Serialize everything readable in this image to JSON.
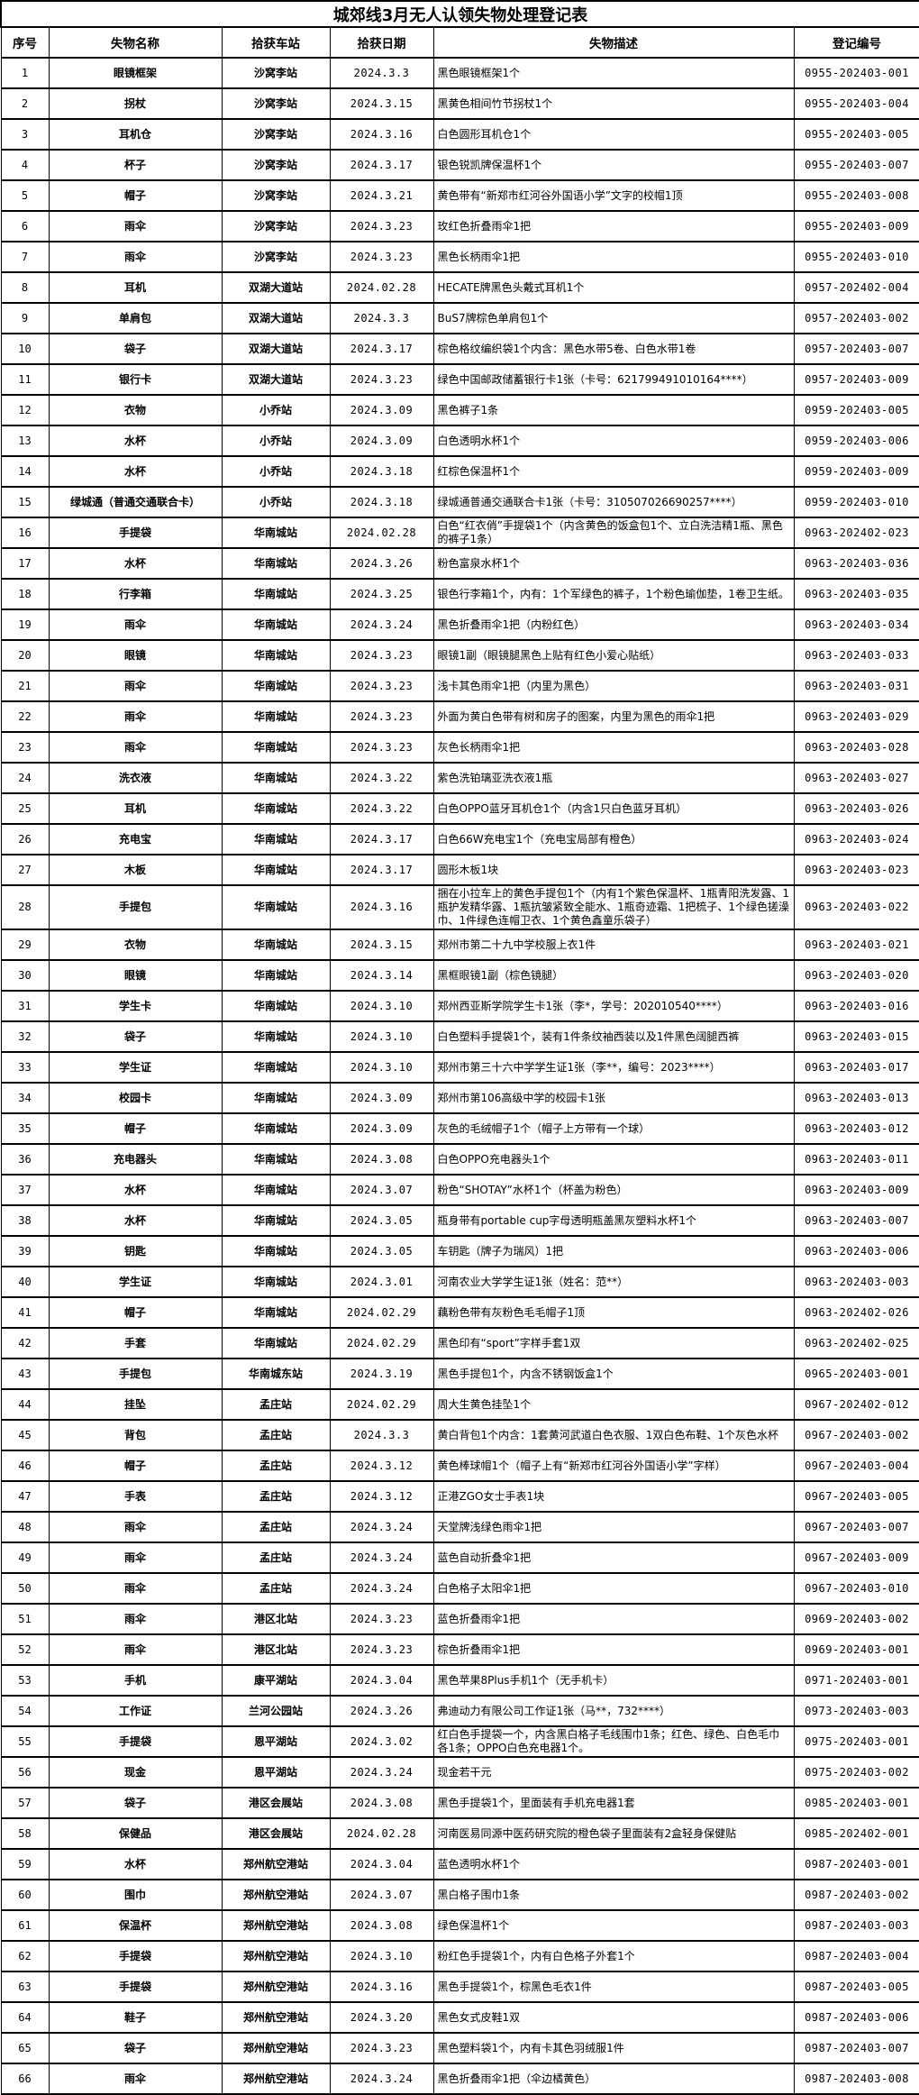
{
  "table": {
    "title": "城郊线3月无人认领失物处理登记表",
    "columns": [
      "序号",
      "失物名称",
      "拾获车站",
      "拾获日期",
      "失物描述",
      "登记编号"
    ],
    "rows": [
      [
        "1",
        "眼镜框架",
        "沙窝李站",
        "2024.3.3",
        "黑色眼镜框架1个",
        "0955-202403-001"
      ],
      [
        "2",
        "拐杖",
        "沙窝李站",
        "2024.3.15",
        "黑黄色相间竹节拐杖1个",
        "0955-202403-004"
      ],
      [
        "3",
        "耳机仓",
        "沙窝李站",
        "2024.3.16",
        "白色圆形耳机仓1个",
        "0955-202403-005"
      ],
      [
        "4",
        "杯子",
        "沙窝李站",
        "2024.3.17",
        "银色锐凯牌保温杯1个",
        "0955-202403-007"
      ],
      [
        "5",
        "帽子",
        "沙窝李站",
        "2024.3.21",
        "黄色带有“新郑市红河谷外国语小学”文字的校帽1顶",
        "0955-202403-008"
      ],
      [
        "6",
        "雨伞",
        "沙窝李站",
        "2024.3.23",
        "玫红色折叠雨伞1把",
        "0955-202403-009"
      ],
      [
        "7",
        "雨伞",
        "沙窝李站",
        "2024.3.23",
        "黑色长柄雨伞1把",
        "0955-202403-010"
      ],
      [
        "8",
        "耳机",
        "双湖大道站",
        "2024.02.28",
        "HECATE牌黑色头戴式耳机1个",
        "0957-202402-004"
      ],
      [
        "9",
        "单肩包",
        "双湖大道站",
        "2024.3.3",
        "BuS7牌棕色单肩包1个",
        "0957-202403-002"
      ],
      [
        "10",
        "袋子",
        "双湖大道站",
        "2024.3.17",
        "棕色格纹编织袋1个内含：黑色水带5卷、白色水带1卷",
        "0957-202403-007"
      ],
      [
        "11",
        "银行卡",
        "双湖大道站",
        "2024.3.23",
        "绿色中国邮政储蓄银行卡1张（卡号：621799491010164****）",
        "0957-202403-009"
      ],
      [
        "12",
        "衣物",
        "小乔站",
        "2024.3.09",
        "黑色裤子1条",
        "0959-202403-005"
      ],
      [
        "13",
        "水杯",
        "小乔站",
        "2024.3.09",
        "白色透明水杯1个",
        "0959-202403-006"
      ],
      [
        "14",
        "水杯",
        "小乔站",
        "2024.3.18",
        "红棕色保温杯1个",
        "0959-202403-009"
      ],
      [
        "15",
        "绿城通（普通交通联合卡）",
        "小乔站",
        "2024.3.18",
        "绿城通普通交通联合卡1张（卡号：310507026690257****）",
        "0959-202403-010"
      ],
      [
        "16",
        "手提袋",
        "华南城站",
        "2024.02.28",
        "白色“红衣俏”手提袋1个（内含黄色的饭盒包1个、立白洗洁精1瓶、黑色的裤子1条）",
        "0963-202402-023"
      ],
      [
        "17",
        "水杯",
        "华南城站",
        "2024.3.26",
        "粉色富泉水杯1个",
        "0963-202403-036"
      ],
      [
        "18",
        "行李箱",
        "华南城站",
        "2024.3.25",
        "银色行李箱1个，内有：1个军绿色的裤子，1个粉色瑜伽垫，1卷卫生纸。",
        "0963-202403-035"
      ],
      [
        "19",
        "雨伞",
        "华南城站",
        "2024.3.24",
        "黑色折叠雨伞1把（内粉红色）",
        "0963-202403-034"
      ],
      [
        "20",
        "眼镜",
        "华南城站",
        "2024.3.23",
        "眼镜1副（眼镜腿黑色上贴有红色小爱心贴纸）",
        "0963-202403-033"
      ],
      [
        "21",
        "雨伞",
        "华南城站",
        "2024.3.23",
        "浅卡其色雨伞1把（内里为黑色）",
        "0963-202403-031"
      ],
      [
        "22",
        "雨伞",
        "华南城站",
        "2024.3.23",
        "外面为黄白色带有树和房子的图案，内里为黑色的雨伞1把",
        "0963-202403-029"
      ],
      [
        "23",
        "雨伞",
        "华南城站",
        "2024.3.23",
        "灰色长柄雨伞1把",
        "0963-202403-028"
      ],
      [
        "24",
        "洗衣液",
        "华南城站",
        "2024.3.22",
        "紫色洗铂璃亚洗衣液1瓶",
        "0963-202403-027"
      ],
      [
        "25",
        "耳机",
        "华南城站",
        "2024.3.22",
        "白色OPPO蓝牙耳机仓1个（内含1只白色蓝牙耳机）",
        "0963-202403-026"
      ],
      [
        "26",
        "充电宝",
        "华南城站",
        "2024.3.17",
        "白色66W充电宝1个（充电宝局部有橙色）",
        "0963-202403-024"
      ],
      [
        "27",
        "木板",
        "华南城站",
        "2024.3.17",
        "圆形木板1块",
        "0963-202403-023"
      ],
      [
        "28",
        "手提包",
        "华南城站",
        "2024.3.16",
        "捆在小拉车上的黄色手提包1个（内有1个紫色保温杯、1瓶青阳洗发露、1瓶护发精华露、1瓶抗皱紧致全能水、1瓶奇迹霜、1把梳子、1个绿色搓澡巾、1件绿色连帽卫衣、1个黄色鑫童乐袋子）",
        "0963-202403-022"
      ],
      [
        "29",
        "衣物",
        "华南城站",
        "2024.3.15",
        "郑州市第二十九中学校服上衣1件",
        "0963-202403-021"
      ],
      [
        "30",
        "眼镜",
        "华南城站",
        "2024.3.14",
        "黑框眼镜1副（棕色镜腿）",
        "0963-202403-020"
      ],
      [
        "31",
        "学生卡",
        "华南城站",
        "2024.3.10",
        "郑州西亚斯学院学生卡1张（李*，学号：202010540****）",
        "0963-202403-016"
      ],
      [
        "32",
        "袋子",
        "华南城站",
        "2024.3.10",
        "白色塑料手提袋1个，装有1件条纹袖西装以及1件黑色阔腿西裤",
        "0963-202403-015"
      ],
      [
        "33",
        "学生证",
        "华南城站",
        "2024.3.10",
        "郑州市第三十六中学学生证1张（李**，编号：2023****）",
        "0963-202403-017"
      ],
      [
        "34",
        "校园卡",
        "华南城站",
        "2024.3.09",
        "郑州市第106高级中学的校园卡1张",
        "0963-202403-013"
      ],
      [
        "35",
        "帽子",
        "华南城站",
        "2024.3.09",
        "灰色的毛绒帽子1个（帽子上方带有一个球）",
        "0963-202403-012"
      ],
      [
        "36",
        "充电器头",
        "华南城站",
        "2024.3.08",
        "白色OPPO充电器头1个",
        "0963-202403-011"
      ],
      [
        "37",
        "水杯",
        "华南城站",
        "2024.3.07",
        "粉色“SHOTAY”水杯1个（杯盖为粉色）",
        "0963-202403-009"
      ],
      [
        "38",
        "水杯",
        "华南城站",
        "2024.3.05",
        "瓶身带有portable cup字母透明瓶盖黑灰塑料水杯1个",
        "0963-202403-007"
      ],
      [
        "39",
        "钥匙",
        "华南城站",
        "2024.3.05",
        "车钥匙（牌子为瑞风）1把",
        "0963-202403-006"
      ],
      [
        "40",
        "学生证",
        "华南城站",
        "2024.3.01",
        "河南农业大学学生证1张（姓名：范**）",
        "0963-202403-003"
      ],
      [
        "41",
        "帽子",
        "华南城站",
        "2024.02.29",
        "藕粉色带有灰粉色毛毛帽子1顶",
        "0963-202402-026"
      ],
      [
        "42",
        "手套",
        "华南城站",
        "2024.02.29",
        "黑色印有“sport”字样手套1双",
        "0963-202402-025"
      ],
      [
        "43",
        "手提包",
        "华南城东站",
        "2024.3.19",
        "黑色手提包1个，内含不锈钢饭盒1个",
        "0965-202403-001"
      ],
      [
        "44",
        "挂坠",
        "孟庄站",
        "2024.02.29",
        "周大生黄色挂坠1个",
        "0967-202402-012"
      ],
      [
        "45",
        "背包",
        "孟庄站",
        "2024.3.3",
        "黄白背包1个内含：1套黄河武道白色衣服、1双白色布鞋、1个灰色水杯",
        "0967-202403-002"
      ],
      [
        "46",
        "帽子",
        "孟庄站",
        "2024.3.12",
        "黄色棒球帽1个（帽子上有“新郑市红河谷外国语小学”字样）",
        "0967-202403-004"
      ],
      [
        "47",
        "手表",
        "孟庄站",
        "2024.3.12",
        "正港ZGO女士手表1块",
        "0967-202403-005"
      ],
      [
        "48",
        "雨伞",
        "孟庄站",
        "2024.3.24",
        "天堂牌浅绿色雨伞1把",
        "0967-202403-007"
      ],
      [
        "49",
        "雨伞",
        "孟庄站",
        "2024.3.24",
        "蓝色自动折叠伞1把",
        "0967-202403-009"
      ],
      [
        "50",
        "雨伞",
        "孟庄站",
        "2024.3.24",
        "白色格子太阳伞1把",
        "0967-202403-010"
      ],
      [
        "51",
        "雨伞",
        "港区北站",
        "2024.3.23",
        "蓝色折叠雨伞1把",
        "0969-202403-002"
      ],
      [
        "52",
        "雨伞",
        "港区北站",
        "2024.3.23",
        "棕色折叠雨伞1把",
        "0969-202403-001"
      ],
      [
        "53",
        "手机",
        "康平湖站",
        "2024.3.04",
        "黑色苹果8Plus手机1个（无手机卡）",
        "0971-202403-001"
      ],
      [
        "54",
        "工作证",
        "兰河公园站",
        "2024.3.26",
        "弗迪动力有限公司工作证1张（马**，732****）",
        "0973-202403-003"
      ],
      [
        "55",
        "手提袋",
        "恩平湖站",
        "2024.3.02",
        "红白色手提袋一个，内含黑白格子毛线围巾1条；红色、绿色、白色毛巾各1条；OPPO白色充电器1个。",
        "0975-202403-001"
      ],
      [
        "56",
        "现金",
        "恩平湖站",
        "2024.3.24",
        "现金若干元",
        "0975-202403-002"
      ],
      [
        "57",
        "袋子",
        "港区会展站",
        "2024.3.08",
        "黑色手提袋1个，里面装有手机充电器1套",
        "0985-202403-001"
      ],
      [
        "58",
        "保健品",
        "港区会展站",
        "2024.02.28",
        "河南医易同源中医药研究院的橙色袋子里面装有2盒轻身保健贴",
        "0985-202402-001"
      ],
      [
        "59",
        "水杯",
        "郑州航空港站",
        "2024.3.04",
        "蓝色透明水杯1个",
        "0987-202403-001"
      ],
      [
        "60",
        "围巾",
        "郑州航空港站",
        "2024.3.07",
        "黑白格子围巾1条",
        "0987-202403-002"
      ],
      [
        "61",
        "保温杯",
        "郑州航空港站",
        "2024.3.08",
        "绿色保温杯1个",
        "0987-202403-003"
      ],
      [
        "62",
        "手提袋",
        "郑州航空港站",
        "2024.3.10",
        "粉红色手提袋1个，内有白色格子外套1个",
        "0987-202403-004"
      ],
      [
        "63",
        "手提袋",
        "郑州航空港站",
        "2024.3.16",
        "黑色手提袋1个，棕黑色毛衣1件",
        "0987-202403-005"
      ],
      [
        "64",
        "鞋子",
        "郑州航空港站",
        "2024.3.20",
        "黑色女式皮鞋1双",
        "0987-202403-006"
      ],
      [
        "65",
        "袋子",
        "郑州航空港站",
        "2024.3.23",
        "黑色塑料袋1个，内有卡其色羽绒服1件",
        "0987-202403-007"
      ],
      [
        "66",
        "雨伞",
        "郑州航空港站",
        "2024.3.24",
        "黑色折叠雨伞1把（伞边橘黄色）",
        "0987-202403-008"
      ]
    ]
  }
}
